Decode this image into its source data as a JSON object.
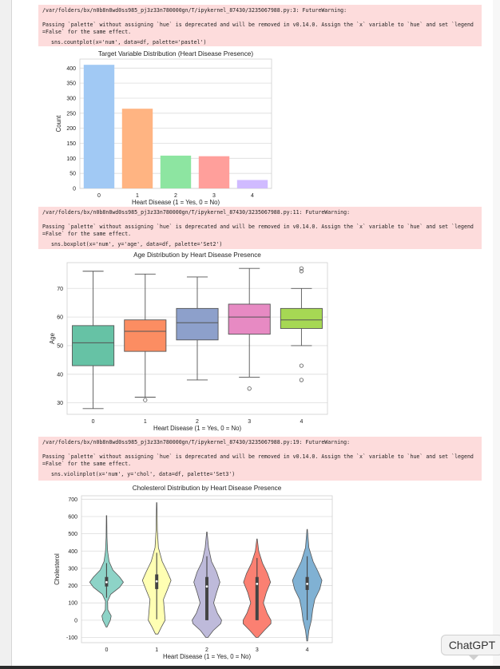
{
  "cells": [
    {
      "warning": {
        "path_line": "/var/folders/bx/n0b8n8wd0ss985_pj3z33n780000gn/T/ipykernel_87430/3235067988.py:3: FutureWarning:",
        "message_lines": [
          "Passing `palette` without assigning `hue` is deprecated and will be removed in v0.14.0. Assign the `x` variable to `hue` and set `legend",
          "=False` for the same effect."
        ],
        "code": "sns.countplot(x='num', data=df, palette='pastel')"
      },
      "chart_data": {
        "type": "bar",
        "title": "Target Variable Distribution (Heart Disease Presence)",
        "xlabel": "Heart Disease (1 = Yes, 0 = No)",
        "ylabel": "Count",
        "categories": [
          "0",
          "1",
          "2",
          "3",
          "4"
        ],
        "values": [
          411,
          265,
          109,
          107,
          28
        ],
        "ylim": [
          0,
          430
        ],
        "yticks": [
          0,
          50,
          100,
          150,
          200,
          250,
          300,
          350,
          400
        ],
        "grid": "horizontal",
        "colors": [
          "#a1c9f4",
          "#ffb482",
          "#8de5a1",
          "#ff9f9b",
          "#d0bbff"
        ]
      }
    },
    {
      "warning": {
        "path_line": "/var/folders/bx/n0b8n8wd0ss985_pj3z33n780000gn/T/ipykernel_87430/3235067988.py:11: FutureWarning:",
        "message_lines": [
          "Passing `palette` without assigning `hue` is deprecated and will be removed in v0.14.0. Assign the `x` variable to `hue` and set `legend",
          "=False` for the same effect."
        ],
        "code": "sns.boxplot(x='num', y='age', data=df, palette='Set2')"
      },
      "chart_data": {
        "type": "box",
        "title": "Age Distribution by Heart Disease Presence",
        "xlabel": "Heart Disease (1 = Yes, 0 = No)",
        "ylabel": "Age",
        "categories": [
          "0",
          "1",
          "2",
          "3",
          "4"
        ],
        "ylim": [
          26,
          79
        ],
        "yticks": [
          30,
          40,
          50,
          60,
          70
        ],
        "grid": "horizontal",
        "boxes": [
          {
            "whisker_low": 28,
            "q1": 43,
            "median": 51,
            "q3": 57,
            "whisker_high": 76,
            "outliers": []
          },
          {
            "whisker_low": 32,
            "q1": 48,
            "median": 55,
            "q3": 59,
            "whisker_high": 75,
            "outliers": [
              31
            ]
          },
          {
            "whisker_low": 38,
            "q1": 52,
            "median": 58,
            "q3": 63,
            "whisker_high": 74,
            "outliers": []
          },
          {
            "whisker_low": 39,
            "q1": 54,
            "median": 60,
            "q3": 64.5,
            "whisker_high": 77,
            "outliers": [
              35
            ]
          },
          {
            "whisker_low": 50,
            "q1": 56,
            "median": 59,
            "q3": 63,
            "whisker_high": 70,
            "outliers": [
              76,
              77,
              43,
              38
            ]
          }
        ],
        "colors": [
          "#66c2a5",
          "#fc8d62",
          "#8da0cb",
          "#e78ac3",
          "#a6d854"
        ]
      }
    },
    {
      "warning": {
        "path_line": "/var/folders/bx/n0b8n8wd0ss985_pj3z33n780000gn/T/ipykernel_87430/3235067988.py:19: FutureWarning:",
        "message_lines": [
          "Passing `palette` without assigning `hue` is deprecated and will be removed in v0.14.0. Assign the `x` variable to `hue` and set `legend",
          "=False` for the same effect."
        ],
        "code": "sns.violinplot(x='num', y='chol', data=df, palette='Set3')"
      },
      "chart_data": {
        "type": "violin",
        "title": "Cholesterol Distribution by Heart Disease Presence",
        "xlabel": "Heart Disease (1 = Yes, 0 = No)",
        "ylabel": "Cholesterol",
        "categories": [
          "0",
          "1",
          "2",
          "3",
          "4"
        ],
        "ylim": [
          -130,
          720
        ],
        "yticks": [
          -100,
          0,
          100,
          200,
          300,
          400,
          500,
          600,
          700
        ],
        "grid": "horizontal",
        "violins": [
          {
            "min": -40,
            "max": 605,
            "q1": 195,
            "median": 220,
            "q3": 250,
            "whisker_low": 130,
            "whisker_high": 330,
            "profile": [
              [
                -40,
                0.02
              ],
              [
                0,
                0.18
              ],
              [
                25,
                0.22
              ],
              [
                60,
                0.06
              ],
              [
                110,
                0.05
              ],
              [
                150,
                0.2
              ],
              [
                190,
                0.62
              ],
              [
                220,
                0.8
              ],
              [
                250,
                0.62
              ],
              [
                290,
                0.3
              ],
              [
                340,
                0.12
              ],
              [
                400,
                0.05
              ],
              [
                480,
                0.02
              ],
              [
                605,
                0.01
              ]
            ]
          },
          {
            "min": -80,
            "max": 680,
            "q1": 180,
            "median": 225,
            "q3": 265,
            "whisker_low": 5,
            "whisker_high": 390,
            "profile": [
              [
                -80,
                0.06
              ],
              [
                -40,
                0.22
              ],
              [
                0,
                0.4
              ],
              [
                60,
                0.36
              ],
              [
                120,
                0.32
              ],
              [
                180,
                0.52
              ],
              [
                230,
                0.68
              ],
              [
                280,
                0.5
              ],
              [
                340,
                0.26
              ],
              [
                420,
                0.08
              ],
              [
                520,
                0.03
              ],
              [
                680,
                0.01
              ]
            ]
          },
          {
            "min": -100,
            "max": 510,
            "q1": 0,
            "median": 195,
            "q3": 250,
            "whisker_low": 0,
            "whisker_high": 370,
            "profile": [
              [
                -100,
                0.05
              ],
              [
                -60,
                0.3
              ],
              [
                -20,
                0.66
              ],
              [
                0,
                0.7
              ],
              [
                40,
                0.5
              ],
              [
                100,
                0.32
              ],
              [
                160,
                0.46
              ],
              [
                220,
                0.62
              ],
              [
                280,
                0.46
              ],
              [
                340,
                0.22
              ],
              [
                420,
                0.08
              ],
              [
                510,
                0.01
              ]
            ]
          },
          {
            "min": -100,
            "max": 470,
            "q1": 0,
            "median": 210,
            "q3": 250,
            "whisker_low": 0,
            "whisker_high": 360,
            "profile": [
              [
                -100,
                0.05
              ],
              [
                -60,
                0.34
              ],
              [
                -20,
                0.66
              ],
              [
                0,
                0.66
              ],
              [
                40,
                0.48
              ],
              [
                100,
                0.3
              ],
              [
                160,
                0.44
              ],
              [
                220,
                0.64
              ],
              [
                270,
                0.5
              ],
              [
                330,
                0.26
              ],
              [
                400,
                0.08
              ],
              [
                470,
                0.01
              ]
            ]
          },
          {
            "min": -120,
            "max": 525,
            "q1": 175,
            "median": 210,
            "q3": 250,
            "whisker_low": 0,
            "whisker_high": 370,
            "profile": [
              [
                -120,
                0.02
              ],
              [
                -60,
                0.08
              ],
              [
                0,
                0.2
              ],
              [
                60,
                0.26
              ],
              [
                120,
                0.36
              ],
              [
                180,
                0.6
              ],
              [
                230,
                0.7
              ],
              [
                280,
                0.52
              ],
              [
                340,
                0.28
              ],
              [
                420,
                0.08
              ],
              [
                525,
                0.01
              ]
            ]
          }
        ],
        "colors": [
          "#8dd3c7",
          "#ffffb3",
          "#bebada",
          "#fb8072",
          "#80b1d3"
        ]
      }
    }
  ],
  "chatgpt_badge": "ChatGPT"
}
